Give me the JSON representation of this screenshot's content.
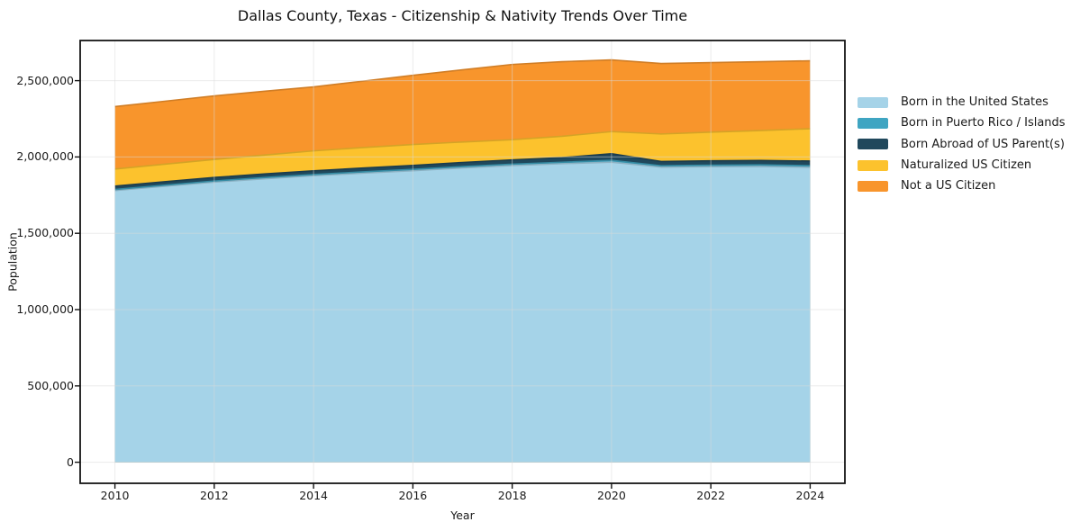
{
  "figure": {
    "title": "Dallas County, Texas - Citizenship & Nativity Trends Over Time",
    "xlabel": "Year",
    "ylabel": "Population"
  },
  "chart_data": {
    "type": "area",
    "stacked": true,
    "title": "Dallas County, Texas - Citizenship & Nativity Trends Over Time",
    "xlabel": "Year",
    "ylabel": "Population",
    "grid": true,
    "legend_position": "right-outside",
    "x": [
      2010,
      2011,
      2012,
      2013,
      2014,
      2015,
      2016,
      2017,
      2018,
      2019,
      2020,
      2021,
      2022,
      2023,
      2024
    ],
    "x_ticks": [
      2010,
      2012,
      2014,
      2016,
      2018,
      2020,
      2022,
      2024
    ],
    "y_ticks": [
      0,
      500000,
      1000000,
      1500000,
      2000000,
      2500000
    ],
    "y_tick_labels": [
      "0",
      "500,000",
      "1,000,000",
      "1,500,000",
      "2,000,000",
      "2,500,000"
    ],
    "xlim": [
      2009.3,
      2024.7
    ],
    "ylim": [
      -138000,
      2763000
    ],
    "totals": [
      2330000,
      2365000,
      2400000,
      2430000,
      2459000,
      2497000,
      2535000,
      2571000,
      2606000,
      2624000,
      2636000,
      2612000,
      2618000,
      2624000,
      2630000
    ],
    "series": [
      {
        "name": "Born in the United States",
        "color": "#a5d3e8",
        "values": [
          1780000,
          1808000,
          1835000,
          1857000,
          1877000,
          1894000,
          1910000,
          1928000,
          1944000,
          1956000,
          1966000,
          1933000,
          1936000,
          1938000,
          1932000
        ]
      },
      {
        "name": "Born in Puerto Rico / Islands",
        "color": "#3fa5c2",
        "values": [
          7000,
          7000,
          7500,
          8000,
          8000,
          8500,
          8500,
          9000,
          9000,
          9500,
          12000,
          9500,
          10000,
          10000,
          11000
        ]
      },
      {
        "name": "Born Abroad of US Parent(s)",
        "color": "#20485c",
        "values": [
          22000,
          22500,
          23000,
          23500,
          24000,
          25000,
          26000,
          27000,
          28000,
          30000,
          43000,
          28000,
          28500,
          29000,
          30000
        ]
      },
      {
        "name": "Naturalized US Citizen",
        "color": "#fcc22d",
        "values": [
          112000,
          115000,
          118000,
          124000,
          131000,
          134000,
          137000,
          134000,
          132000,
          140000,
          145000,
          180000,
          188000,
          196000,
          212000
        ]
      },
      {
        "name": "Not a US Citizen",
        "color": "#f8952c",
        "values": [
          409000,
          412500,
          416500,
          417500,
          419000,
          435500,
          453500,
          473000,
          493000,
          488500,
          470000,
          461500,
          455500,
          451000,
          445000
        ]
      }
    ],
    "colors": {
      "born_us": "#a5d3e8",
      "pr_islands": "#3fa5c2",
      "born_abroad": "#20485c",
      "naturalized": "#fcc22d",
      "not_citizen": "#f8952c",
      "grid": "#d9d9d9",
      "frame": "#141414"
    }
  }
}
